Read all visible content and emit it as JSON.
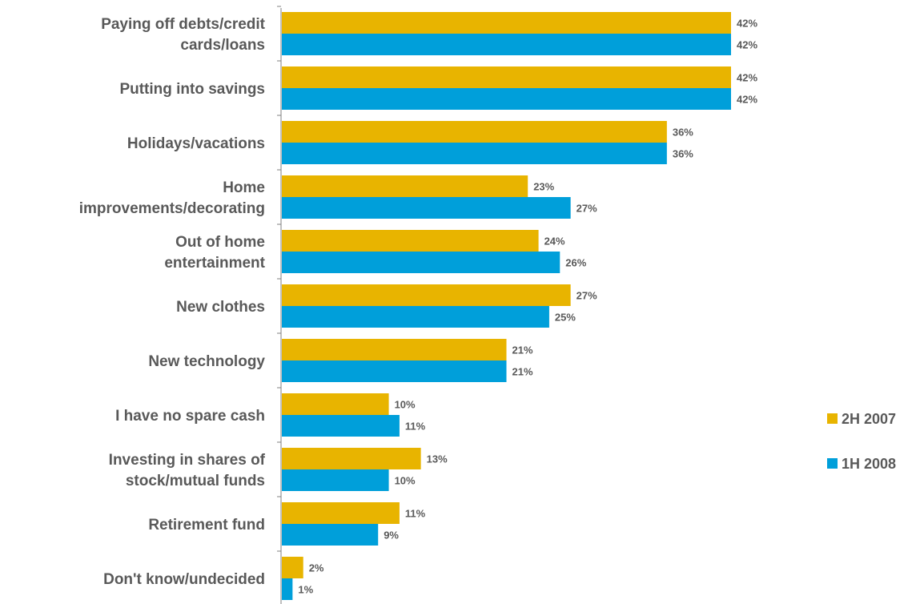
{
  "chart_data": {
    "type": "bar",
    "orientation": "horizontal",
    "categories": [
      [
        "Paying off debts/credit",
        "cards/loans"
      ],
      [
        "Putting into savings"
      ],
      [
        "Holidays/vacations"
      ],
      [
        "Home",
        "improvements/decorating"
      ],
      [
        "Out of home",
        "entertainment"
      ],
      [
        "New clothes"
      ],
      [
        "New technology"
      ],
      [
        "I have no spare cash"
      ],
      [
        "Investing in shares of",
        "stock/mutual funds"
      ],
      [
        "Retirement fund"
      ],
      [
        "Don't know/undecided"
      ]
    ],
    "series": [
      {
        "name": "2H 2007",
        "color": "#E8B400",
        "values": [
          42,
          42,
          36,
          23,
          24,
          27,
          21,
          10,
          13,
          11,
          2
        ]
      },
      {
        "name": "1H 2008",
        "color": "#009FDA",
        "values": [
          42,
          42,
          36,
          27,
          26,
          25,
          21,
          11,
          10,
          9,
          1
        ]
      }
    ],
    "value_suffix": "%",
    "xlim": [
      0,
      42
    ],
    "legend_position": "right",
    "grid": false
  }
}
